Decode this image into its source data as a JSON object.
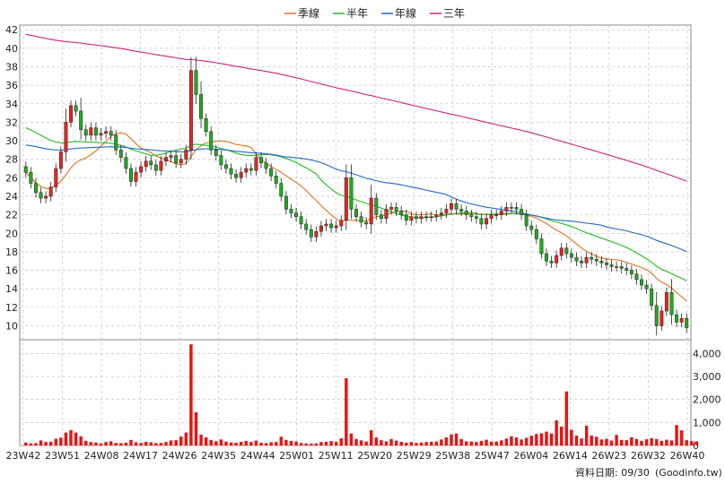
{
  "chart_data": {
    "type": "candlestick",
    "legend": [
      {
        "name": "季線",
        "color": "#e07020"
      },
      {
        "name": "半年",
        "color": "#22bb22"
      },
      {
        "name": "年線",
        "color": "#2266cc"
      },
      {
        "name": "三年",
        "color": "#cc2277"
      }
    ],
    "x_ticks": [
      "23W42",
      "23W51",
      "24W08",
      "24W17",
      "24W26",
      "24W35",
      "24W44",
      "25W01",
      "25W11",
      "25W20",
      "25W29",
      "25W38",
      "25W47",
      "26W04",
      "26W14",
      "26W23",
      "26W32",
      "26W40"
    ],
    "price_ticks": [
      10,
      12,
      14,
      16,
      18,
      20,
      22,
      24,
      26,
      28,
      30,
      32,
      34,
      36,
      38,
      40,
      42
    ],
    "price_ylim": [
      8.5,
      42.5
    ],
    "volume_ticks": [
      "0",
      "1,000",
      "2,000",
      "3,000",
      "4,000"
    ],
    "volume_ylim": [
      0,
      4600
    ],
    "closes": [
      26.6,
      25.4,
      24.4,
      23.8,
      24.0,
      25.0,
      27.0,
      28.8,
      32.0,
      33.8,
      33.2,
      31.2,
      30.6,
      31.4,
      30.6,
      30.8,
      31.0,
      30.6,
      29.0,
      28.2,
      27.0,
      25.6,
      26.6,
      27.2,
      27.8,
      27.4,
      26.8,
      27.8,
      28.2,
      28.4,
      27.6,
      28.0,
      29.0,
      37.6,
      35.0,
      32.4,
      31.0,
      29.0,
      28.4,
      27.4,
      27.0,
      26.4,
      26.0,
      26.6,
      27.0,
      26.8,
      28.2,
      27.6,
      27.0,
      26.2,
      25.4,
      24.0,
      22.6,
      22.2,
      21.8,
      21.0,
      20.4,
      19.6,
      20.2,
      20.8,
      21.0,
      20.6,
      20.8,
      21.4,
      26.0,
      22.6,
      21.8,
      21.2,
      21.0,
      23.8,
      22.0,
      21.6,
      22.6,
      22.8,
      22.4,
      22.0,
      21.4,
      21.8,
      21.6,
      21.8,
      21.8,
      21.8,
      22.0,
      22.2,
      22.6,
      23.2,
      22.6,
      22.4,
      22.0,
      21.8,
      21.6,
      21.0,
      21.6,
      22.0,
      22.0,
      22.4,
      22.8,
      22.8,
      22.6,
      22.0,
      20.8,
      20.4,
      19.4,
      17.8,
      17.0,
      16.8,
      17.6,
      18.4,
      17.8,
      17.4,
      17.0,
      16.8,
      17.4,
      17.2,
      17.0,
      16.8,
      16.6,
      16.4,
      16.4,
      16.2,
      16.0,
      15.6,
      15.0,
      14.4,
      14.0,
      12.2,
      10.0,
      11.6,
      13.6,
      11.2,
      10.4,
      10.8,
      9.8
    ],
    "volumes": [
      130,
      90,
      100,
      220,
      150,
      160,
      290,
      340,
      560,
      670,
      560,
      400,
      200,
      150,
      130,
      90,
      150,
      180,
      110,
      100,
      120,
      240,
      140,
      110,
      160,
      140,
      100,
      110,
      150,
      220,
      230,
      390,
      560,
      4400,
      1450,
      470,
      350,
      240,
      180,
      260,
      170,
      130,
      120,
      160,
      200,
      150,
      210,
      120,
      100,
      140,
      150,
      380,
      240,
      200,
      170,
      110,
      90,
      80,
      90,
      150,
      160,
      190,
      160,
      310,
      2930,
      520,
      280,
      220,
      170,
      660,
      350,
      230,
      180,
      280,
      210,
      160,
      120,
      150,
      110,
      130,
      150,
      160,
      170,
      260,
      350,
      480,
      520,
      280,
      180,
      170,
      150,
      200,
      250,
      160,
      170,
      220,
      300,
      400,
      350,
      260,
      330,
      420,
      500,
      530,
      600,
      520,
      1090,
      820,
      2350,
      680,
      430,
      300,
      860,
      430,
      380,
      260,
      290,
      210,
      460,
      240,
      230,
      360,
      280,
      200,
      270,
      320,
      280,
      200,
      250,
      220,
      890,
      660,
      230,
      190,
      180
    ]
  },
  "footer": {
    "date_label": "資料日期: 09/30",
    "source": "(Goodinfo.tw)"
  }
}
